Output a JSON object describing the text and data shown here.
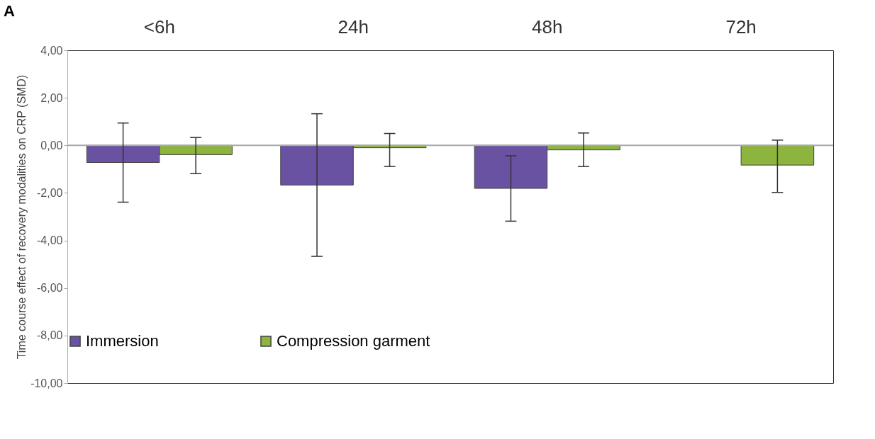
{
  "chart_data": {
    "type": "bar",
    "ylabel": "Time course effect of recovery modalities on CRP (SMD)",
    "annotations": [
      "A"
    ],
    "categories": [
      "<6h",
      "24h",
      "48h",
      "72h"
    ],
    "series": [
      {
        "name": "Immersion",
        "color": "#6a52a3",
        "values": [
          -0.72,
          -1.67,
          -1.81,
          null
        ],
        "errors": [
          [
            -2.39,
            0.94
          ],
          [
            -4.67,
            1.33
          ],
          [
            -3.19,
            -0.44
          ],
          null
        ]
      },
      {
        "name": "Compression garment",
        "color": "#8db43c",
        "values": [
          -0.39,
          -0.1,
          -0.19,
          -0.83
        ],
        "errors": [
          [
            -1.19,
            0.33
          ],
          [
            -0.89,
            0.5
          ],
          [
            -0.89,
            0.52
          ],
          [
            -1.98,
            0.22
          ]
        ]
      }
    ],
    "ylim": [
      -10,
      4
    ],
    "yticks": [
      {
        "value": 4,
        "label": "4,00"
      },
      {
        "value": 2,
        "label": "2,00"
      },
      {
        "value": 0,
        "label": "0,00"
      },
      {
        "value": -2,
        "label": "-2,00"
      },
      {
        "value": -4,
        "label": "-4,00"
      },
      {
        "value": -6,
        "label": "-6,00"
      },
      {
        "value": -8,
        "label": "-8,00"
      },
      {
        "value": -10,
        "label": "-10,00"
      }
    ],
    "ref_lines": [
      {
        "axis": "y",
        "value": 0,
        "color": "#aaaaaa"
      }
    ],
    "legend": "bottom",
    "grid": false
  }
}
